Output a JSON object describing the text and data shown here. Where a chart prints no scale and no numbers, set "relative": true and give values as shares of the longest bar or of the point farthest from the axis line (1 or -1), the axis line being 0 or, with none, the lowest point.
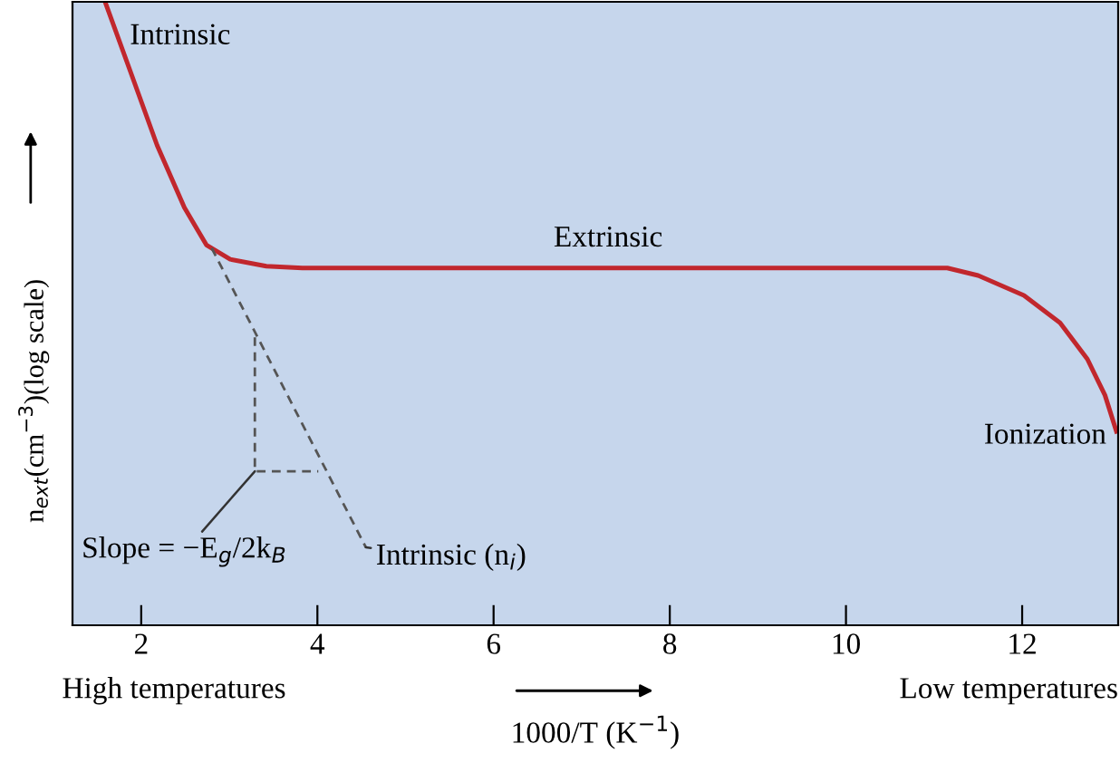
{
  "chart_data": {
    "type": "line",
    "relative": true,
    "xlabel": "1000/T (K$^{−1}$)",
    "ylabel": "n$_{ext}$(cm$^{−3}$)(log scale)",
    "xlim": [
      1.22,
      13.09
    ],
    "xticks": [
      2,
      4,
      6,
      8,
      10,
      12
    ],
    "tick_labels": "x",
    "marker": "none",
    "line_style": "solid",
    "series": [
      {
        "color": "#c1272d",
        "x": [
          1.59,
          1.86,
          2.18,
          2.49,
          2.74,
          3.01,
          3.42,
          3.83,
          6.0,
          9.0,
          11.15,
          11.5,
          12.02,
          12.43,
          12.74,
          12.94,
          13.07
        ],
        "values": [
          1.0,
          0.895,
          0.77,
          0.67,
          0.61,
          0.587,
          0.576,
          0.573,
          0.573,
          0.573,
          0.573,
          0.561,
          0.529,
          0.485,
          0.427,
          0.369,
          0.311
        ]
      },
      {
        "color": "#555555",
        "line_style": "dashed",
        "x": [
          2.8,
          4.55
        ],
        "values": [
          0.605,
          0.125
        ]
      },
      {
        "color": "#555555",
        "line_style": "dashed",
        "x": [
          3.29,
          3.29,
          4.01
        ],
        "values": [
          0.462,
          0.247,
          0.247
        ]
      }
    ],
    "annotations": [
      {
        "text": "Intrinsic",
        "x": 1.7,
        "y": 0.96
      },
      {
        "text": "Extrinsic",
        "x": 7.3,
        "y": 0.573
      },
      {
        "text": "Ionization",
        "x": 13.07,
        "y": 0.311
      },
      {
        "text": "Slope = −E$_{g}$/2k$_{B}$",
        "x": 3.29,
        "y": 0.247
      },
      {
        "text": "Intrinsic (n$_{i}$)",
        "x": 4.55,
        "y": 0.125
      },
      "High temperatures",
      "Low temperatures"
    ]
  }
}
